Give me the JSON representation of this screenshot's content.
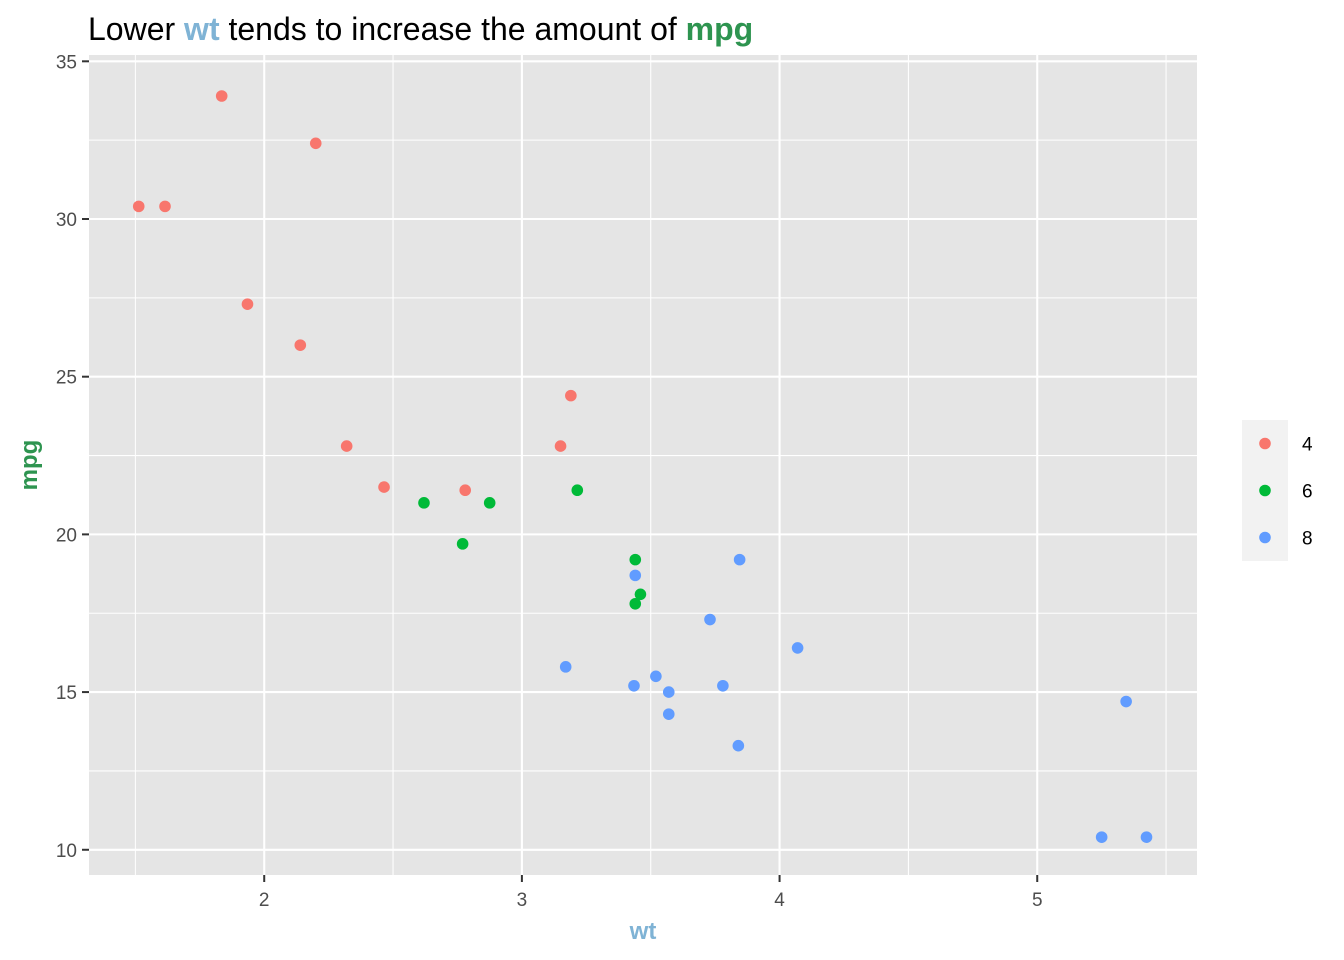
{
  "chart_data": {
    "type": "scatter",
    "title_parts": [
      {
        "text": "Lower ",
        "highlight": false
      },
      {
        "text": "wt",
        "highlight": true,
        "color": "#7fb3d5"
      },
      {
        "text": " tends to increase the amount of ",
        "highlight": false
      },
      {
        "text": "mpg",
        "highlight": true,
        "color": "#2e9450"
      }
    ],
    "xlabel": "wt",
    "ylabel": "mpg",
    "xlabel_color": "#7fb3d5",
    "ylabel_color": "#2e9450",
    "xlim": [
      1.32,
      5.62
    ],
    "ylim": [
      9.2,
      35.2
    ],
    "x_ticks": [
      2,
      3,
      4,
      5
    ],
    "y_ticks": [
      10,
      15,
      20,
      25,
      30,
      35
    ],
    "grid": true,
    "legend_position": "right",
    "series": [
      {
        "name": "4",
        "color": "#f8766d",
        "points": [
          [
            1.513,
            30.4
          ],
          [
            1.615,
            30.4
          ],
          [
            1.835,
            33.9
          ],
          [
            1.935,
            27.3
          ],
          [
            2.14,
            26.0
          ],
          [
            2.2,
            32.4
          ],
          [
            2.32,
            22.8
          ],
          [
            2.465,
            21.5
          ],
          [
            2.78,
            21.4
          ],
          [
            3.15,
            22.8
          ],
          [
            3.19,
            24.4
          ]
        ]
      },
      {
        "name": "6",
        "color": "#00ba38",
        "points": [
          [
            2.62,
            21.0
          ],
          [
            2.77,
            19.7
          ],
          [
            2.875,
            21.0
          ],
          [
            3.215,
            21.4
          ],
          [
            3.44,
            19.2
          ],
          [
            3.44,
            17.8
          ],
          [
            3.46,
            18.1
          ]
        ]
      },
      {
        "name": "8",
        "color": "#619cff",
        "points": [
          [
            3.17,
            15.8
          ],
          [
            3.435,
            15.2
          ],
          [
            3.44,
            18.7
          ],
          [
            3.52,
            15.5
          ],
          [
            3.57,
            14.3
          ],
          [
            3.57,
            15.0
          ],
          [
            3.73,
            17.3
          ],
          [
            3.78,
            15.2
          ],
          [
            3.84,
            13.3
          ],
          [
            3.845,
            19.2
          ],
          [
            4.07,
            16.4
          ],
          [
            5.25,
            10.4
          ],
          [
            5.345,
            14.7
          ],
          [
            5.424,
            10.4
          ]
        ]
      }
    ]
  }
}
